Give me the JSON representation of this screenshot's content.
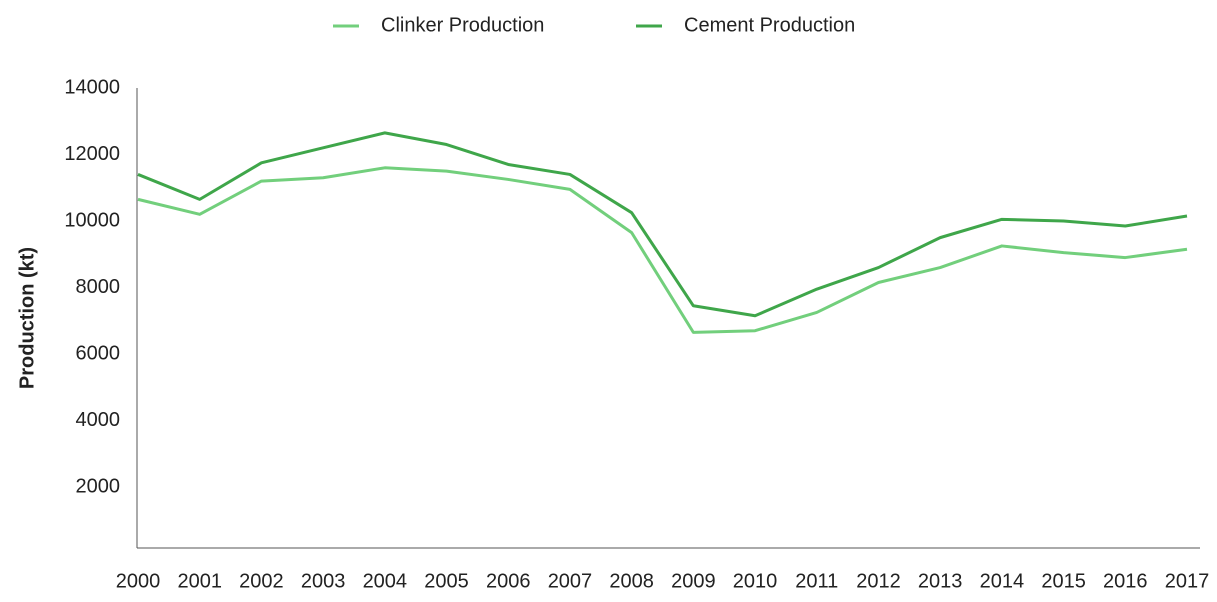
{
  "chart_data": {
    "type": "line",
    "y_label": "Production (kt)",
    "x": [
      2000,
      2001,
      2002,
      2003,
      2004,
      2005,
      2006,
      2007,
      2008,
      2009,
      2010,
      2011,
      2012,
      2013,
      2014,
      2015,
      2016,
      2017
    ],
    "xlim": [
      2000,
      2017
    ],
    "xticks": [
      2000,
      2001,
      2002,
      2003,
      2004,
      2005,
      2006,
      2007,
      2008,
      2009,
      2010,
      2011,
      2012,
      2013,
      2014,
      2015,
      2016,
      2017
    ],
    "ylim": [
      0,
      14000
    ],
    "yticks": [
      2000,
      4000,
      6000,
      8000,
      10000,
      12000,
      14000
    ],
    "grid": false,
    "legend": "top",
    "series": [
      {
        "name": "Clinker Production",
        "color": "#72cf7c",
        "values": [
          10650,
          10200,
          11200,
          11300,
          11600,
          11500,
          11250,
          10950,
          9650,
          6650,
          6700,
          7250,
          8150,
          8600,
          9250,
          9050,
          8900,
          9150
        ]
      },
      {
        "name": "Cement Production",
        "color": "#3fa64a",
        "values": [
          11400,
          10650,
          11750,
          12200,
          12650,
          12300,
          11700,
          11400,
          10250,
          7450,
          7150,
          7950,
          8600,
          9500,
          10050,
          10000,
          9850,
          10150
        ]
      }
    ]
  }
}
